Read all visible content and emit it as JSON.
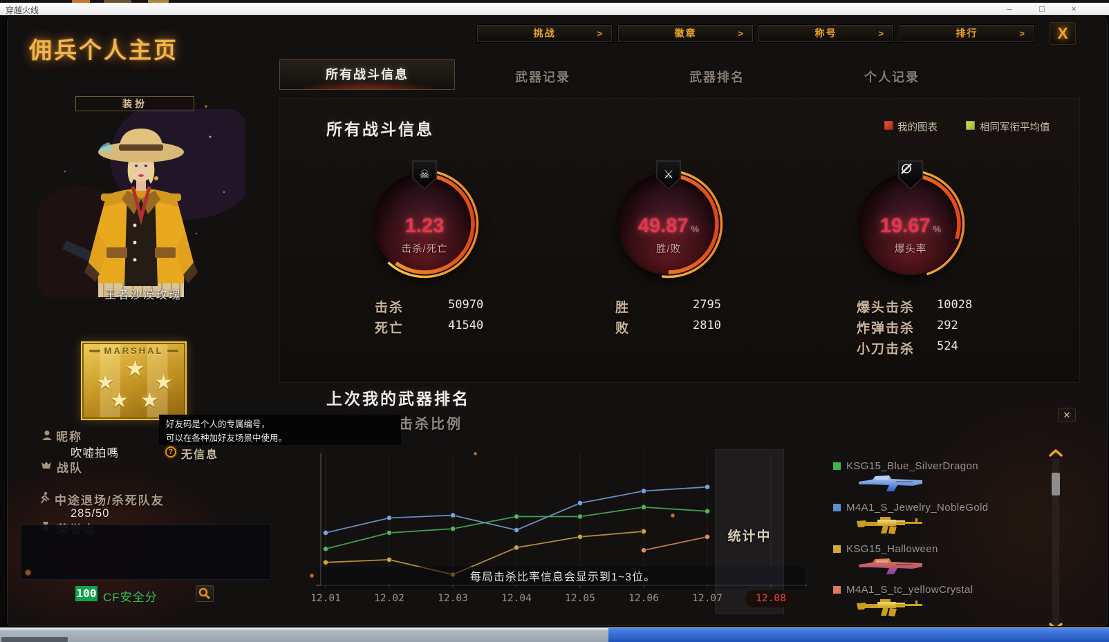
{
  "os": {
    "title": "穿越火线",
    "min": "–",
    "max": "□",
    "close": "×"
  },
  "window": {
    "page_title": "佣兵个人主页",
    "nav_buttons": [
      "挑战",
      "徽章",
      "称号",
      "排行"
    ],
    "close_x": "X",
    "tabs": [
      "所有战斗信息",
      "武器记录",
      "武器排名",
      "个人记录"
    ],
    "active_tab": "所有战斗信息"
  },
  "sidebar": {
    "dress_button": "装扮",
    "character_name": "王者沙漠玫瑰",
    "rank_badge": "MARSHAL",
    "nickname_label": "昵称",
    "nickname_value": "吹嘘拍嗎",
    "no_info": "无信息",
    "clan_label": "战队",
    "quit_label": "中途退场/杀死队友",
    "quit_value": "285/50",
    "honor_label": "荣誉点",
    "safety_score": "100",
    "safety_label": "CF安全分"
  },
  "tooltip": {
    "line1": "好友码是个人的专属编号，",
    "line2": "可以在各种加好友场景中使用。"
  },
  "combat": {
    "section_title": "所有战斗信息",
    "legend": [
      {
        "label": "我的图表",
        "color": "#cc3b2a"
      },
      {
        "label": "相同军衔平均值",
        "color": "#d2c23e"
      }
    ],
    "gauges": [
      {
        "value": "1.23",
        "unit": "",
        "label": "击杀/死亡",
        "icon": "skull-icon",
        "outer": 0.62,
        "inner": 0.6
      },
      {
        "value": "49.87",
        "unit": "%",
        "label": "胜/败",
        "icon": "crossed-rifles-icon",
        "outer": 0.52,
        "inner": 0.5
      },
      {
        "value": "19.67",
        "unit": "%",
        "label": "爆头率",
        "icon": "scoped-rifle-icon",
        "outer": 0.45,
        "inner": 0.3
      }
    ],
    "stats": [
      [
        {
          "label": "击杀",
          "value": "50970"
        },
        {
          "label": "死亡",
          "value": "41540"
        }
      ],
      [
        {
          "label": "胜",
          "value": "2795"
        },
        {
          "label": "败",
          "value": "2810"
        }
      ],
      [
        {
          "label": "爆头击杀",
          "value": "10028"
        },
        {
          "label": "炸弹击杀",
          "value": "292"
        },
        {
          "label": "小刀击杀",
          "value": "524"
        }
      ]
    ]
  },
  "weapon_rank": {
    "title": "上次我的武器排名",
    "subtitle": "击杀比例",
    "note": "每局击杀比率信息会显示到1~3位。",
    "status": "统计中"
  },
  "chart_data": {
    "type": "line",
    "title": "击杀比例",
    "x": [
      "12.01",
      "12.02",
      "12.03",
      "12.04",
      "12.05",
      "12.06",
      "12.07",
      "12.08"
    ],
    "selected_x": "12.08",
    "ylabel": "",
    "y_axis": "unlabeled relative kill-ratio scale 0-100 (estimated from pixels)",
    "grid": "vertical",
    "legend_position": "right-list",
    "status_label": "统计中",
    "note": "每局击杀比率信息会显示到1~3位。",
    "series": [
      {
        "name": "M4A1_S_Jewelry_NobleGold",
        "color": "#7aa3dc",
        "values": [
          39,
          50,
          52,
          41,
          61,
          70,
          73,
          null
        ]
      },
      {
        "name": "KSG15_Blue_SilverDragon",
        "color": "#4db85c",
        "values": [
          27,
          39,
          42,
          51,
          51,
          58,
          55,
          null
        ]
      },
      {
        "name": "KSG15_Halloween",
        "color": "#d2a63e",
        "values": [
          17,
          19,
          8,
          28,
          36,
          40,
          null,
          null
        ]
      },
      {
        "name": "M4A1_S_tc_yellowCrystal",
        "color": "#e38a5f",
        "values": [
          null,
          null,
          null,
          null,
          null,
          26,
          36,
          null
        ]
      }
    ]
  },
  "weapon_list": [
    {
      "name": "KSG15_Blue_SilverDragon",
      "legend_color": "#3cb54a",
      "gun": "ksg",
      "c1": "#2f62c8",
      "c2": "#bcd4f8"
    },
    {
      "name": "M4A1_S_Jewelry_NobleGold",
      "legend_color": "#5b8fd4",
      "gun": "m4",
      "c1": "#c99c1e",
      "c2": "#f2dc82"
    },
    {
      "name": "KSG15_Halloween",
      "legend_color": "#d4a93e",
      "gun": "ksg",
      "c1": "#8a3ab0",
      "c2": "#f08030"
    },
    {
      "name": "M4A1_S_tc_yellowCrystal",
      "legend_color": "#e07a5a",
      "gun": "m4",
      "c1": "#c9a020",
      "c2": "#f0d868"
    }
  ]
}
